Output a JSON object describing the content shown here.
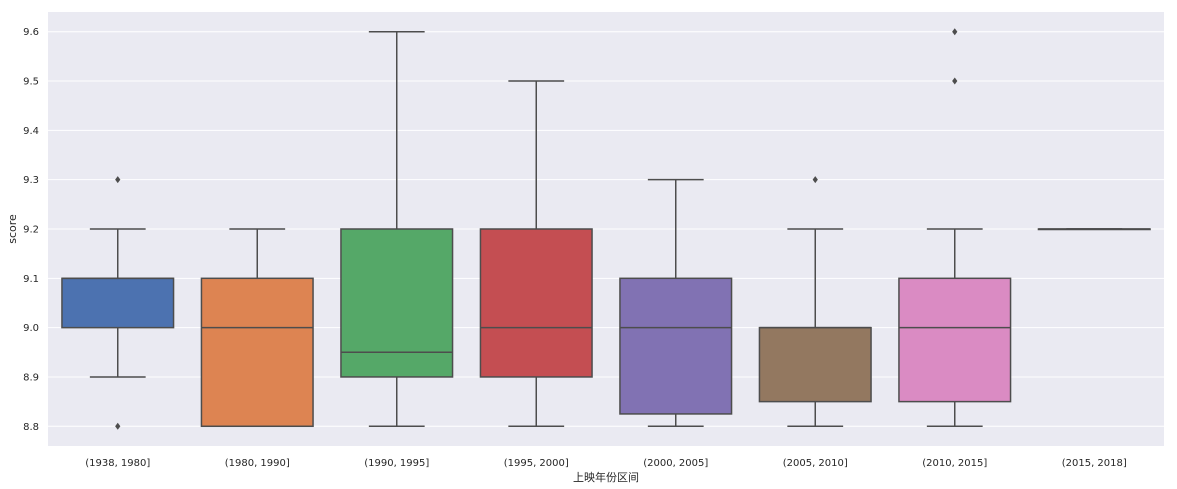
{
  "chart_data": {
    "type": "box",
    "title": "",
    "xlabel": "上映年份区间",
    "ylabel": "score",
    "ylim": [
      8.76,
      9.64
    ],
    "yticks": [
      8.8,
      8.9,
      9.0,
      9.1,
      9.2,
      9.3,
      9.4,
      9.5,
      9.6
    ],
    "ytick_labels": [
      "8.8",
      "8.9",
      "9.0",
      "9.1",
      "9.2",
      "9.3",
      "9.4",
      "9.5",
      "9.6"
    ],
    "grid": true,
    "legend": "none",
    "background": "#eaeaf2",
    "line_color": "#4d4d4d",
    "categories": [
      "(1938, 1980]",
      "(1980, 1990]",
      "(1990, 1995]",
      "(1995, 2000]",
      "(2000, 2005]",
      "(2005, 2010]",
      "(2010, 2015]",
      "(2015, 2018]"
    ],
    "boxes": [
      {
        "category": "(1938, 1980]",
        "whisker_low": 8.9,
        "q1": 9.0,
        "median": 9.1,
        "q3": 9.1,
        "whisker_high": 9.2,
        "outliers": [
          8.8,
          9.3
        ],
        "color": "#4c72b0"
      },
      {
        "category": "(1980, 1990]",
        "whisker_low": 8.8,
        "q1": 8.8,
        "median": 9.0,
        "q3": 9.1,
        "whisker_high": 9.2,
        "outliers": [],
        "color": "#dd8452"
      },
      {
        "category": "(1990, 1995]",
        "whisker_low": 8.8,
        "q1": 8.9,
        "median": 8.95,
        "q3": 9.2,
        "whisker_high": 9.6,
        "outliers": [],
        "color": "#55a868"
      },
      {
        "category": "(1995, 2000]",
        "whisker_low": 8.8,
        "q1": 8.9,
        "median": 9.0,
        "q3": 9.2,
        "whisker_high": 9.5,
        "outliers": [],
        "color": "#c44e52"
      },
      {
        "category": "(2000, 2005]",
        "whisker_low": 8.8,
        "q1": 8.825,
        "median": 9.0,
        "q3": 9.1,
        "whisker_high": 9.3,
        "outliers": [],
        "color": "#8172b3"
      },
      {
        "category": "(2005, 2010]",
        "whisker_low": 8.8,
        "q1": 8.85,
        "median": 9.0,
        "q3": 9.0,
        "whisker_high": 9.2,
        "outliers": [
          9.3
        ],
        "color": "#937860"
      },
      {
        "category": "(2010, 2015]",
        "whisker_low": 8.8,
        "q1": 8.85,
        "median": 9.0,
        "q3": 9.1,
        "whisker_high": 9.2,
        "outliers": [
          9.5,
          9.6
        ],
        "color": "#da8bc3"
      },
      {
        "category": "(2015, 2018]",
        "whisker_low": 9.2,
        "q1": 9.2,
        "median": 9.2,
        "q3": 9.2,
        "whisker_high": 9.2,
        "outliers": [],
        "color": "#8c8c8c"
      }
    ]
  }
}
